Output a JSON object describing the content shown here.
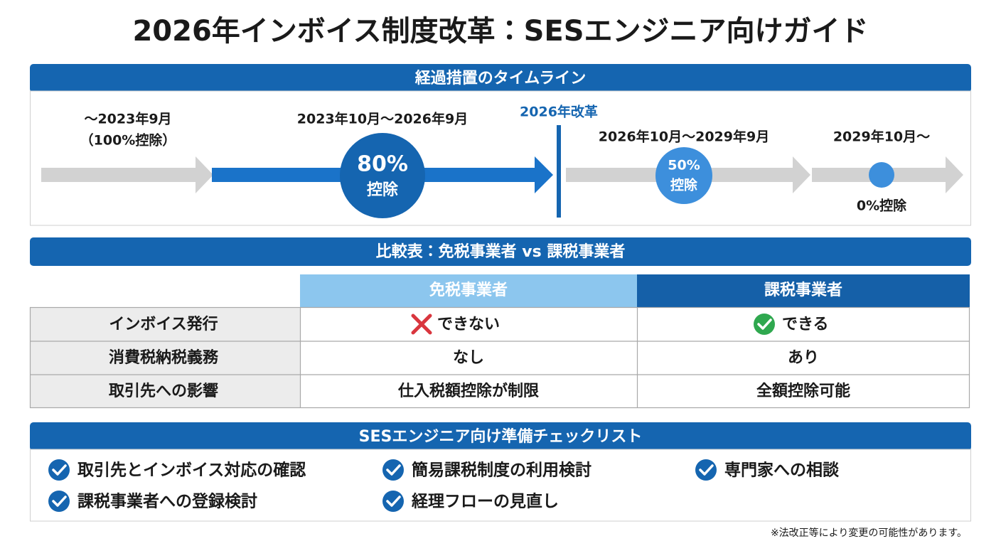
{
  "title": "2026年インボイス制度改革：SESエンジニア向けガイド",
  "timeline": {
    "heading": "経過措置のタイムライン",
    "marker": "2026年改革",
    "periods": [
      {
        "label": "～2023年9月",
        "note": "（100%控除）"
      },
      {
        "label": "2023年10月～2026年9月",
        "badge": [
          "80%",
          "控除"
        ]
      },
      {
        "label": "2026年10月～2029年9月",
        "badge": [
          "50%",
          "控除"
        ]
      },
      {
        "label": "2029年10月～",
        "note": "0%控除"
      }
    ]
  },
  "comparison": {
    "heading": "比較表：免税事業者 vs 課税事業者",
    "columns": [
      "免税事業者",
      "課税事業者"
    ],
    "rows": [
      [
        "インボイス発行",
        "できない",
        "できる"
      ],
      [
        "消費税納税義務",
        "なし",
        "あり"
      ],
      [
        "取引先への影響",
        "仕入税額控除が制限",
        "全額控除可能"
      ]
    ]
  },
  "checklist": {
    "heading": "SESエンジニア向け準備チェックリスト",
    "items": [
      "取引先とインボイス対応の確認",
      "課税事業者への登録検討",
      "簡易課税制度の利用検討",
      "経理フローの見直し",
      "専門家への相談"
    ]
  },
  "footnote": "※法改正等により変更の可能性があります。"
}
